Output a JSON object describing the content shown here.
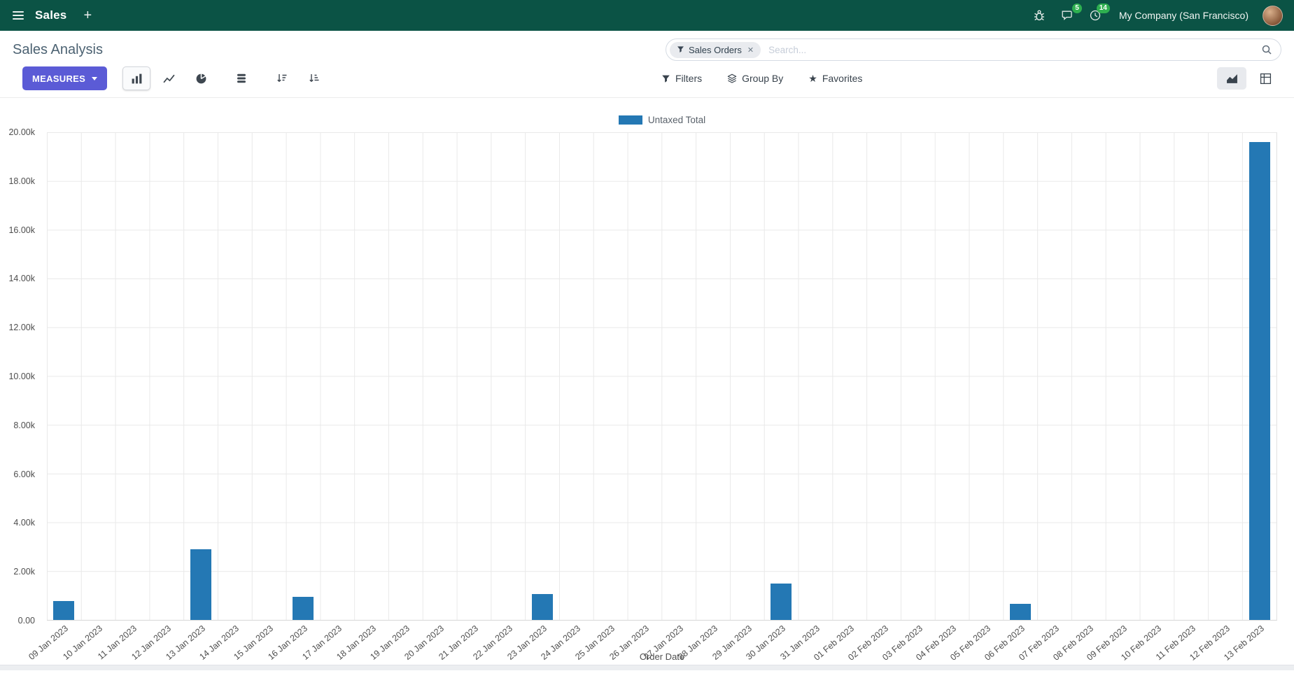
{
  "navbar": {
    "app_name": "Sales",
    "plus_label": "+",
    "company": "My Company (San Francisco)",
    "badges": {
      "messages": "5",
      "activities": "14"
    }
  },
  "control_panel": {
    "title": "Sales Analysis",
    "search": {
      "facet_label": "Sales Orders",
      "facet_remove": "✕",
      "placeholder": "Search..."
    },
    "buttons": {
      "measures": "MEASURES",
      "filters": "Filters",
      "group_by": "Group By",
      "favorites": "Favorites"
    }
  },
  "chart_data": {
    "type": "bar",
    "title": "",
    "legend": [
      {
        "label": "Untaxed Total"
      }
    ],
    "xlabel": "Order Date",
    "ylabel": "",
    "ylim": [
      0,
      20000
    ],
    "grid": true,
    "legend_position": "top-center",
    "y_ticks": [
      "0.00",
      "2.00k",
      "4.00k",
      "6.00k",
      "8.00k",
      "10.00k",
      "12.00k",
      "14.00k",
      "16.00k",
      "18.00k",
      "20.00k"
    ],
    "categories": [
      "09 Jan 2023",
      "10 Jan 2023",
      "11 Jan 2023",
      "12 Jan 2023",
      "13 Jan 2023",
      "14 Jan 2023",
      "15 Jan 2023",
      "16 Jan 2023",
      "17 Jan 2023",
      "18 Jan 2023",
      "19 Jan 2023",
      "20 Jan 2023",
      "21 Jan 2023",
      "22 Jan 2023",
      "23 Jan 2023",
      "24 Jan 2023",
      "25 Jan 2023",
      "26 Jan 2023",
      "27 Jan 2023",
      "28 Jan 2023",
      "29 Jan 2023",
      "30 Jan 2023",
      "31 Jan 2023",
      "01 Feb 2023",
      "02 Feb 2023",
      "03 Feb 2023",
      "04 Feb 2023",
      "05 Feb 2023",
      "06 Feb 2023",
      "07 Feb 2023",
      "08 Feb 2023",
      "09 Feb 2023",
      "10 Feb 2023",
      "11 Feb 2023",
      "12 Feb 2023",
      "13 Feb 2023"
    ],
    "series": [
      {
        "name": "Untaxed Total",
        "color": "#2478b4",
        "values": [
          780,
          0,
          0,
          0,
          2900,
          0,
          0,
          950,
          0,
          0,
          0,
          0,
          0,
          0,
          1050,
          0,
          0,
          0,
          0,
          0,
          0,
          1500,
          0,
          0,
          0,
          0,
          0,
          0,
          650,
          0,
          0,
          0,
          0,
          0,
          0,
          19600
        ]
      }
    ]
  },
  "colors": {
    "navbar_bg": "#0b5345",
    "accent": "#5b5bd6",
    "bar": "#2478b4",
    "badge": "#2eb050"
  }
}
